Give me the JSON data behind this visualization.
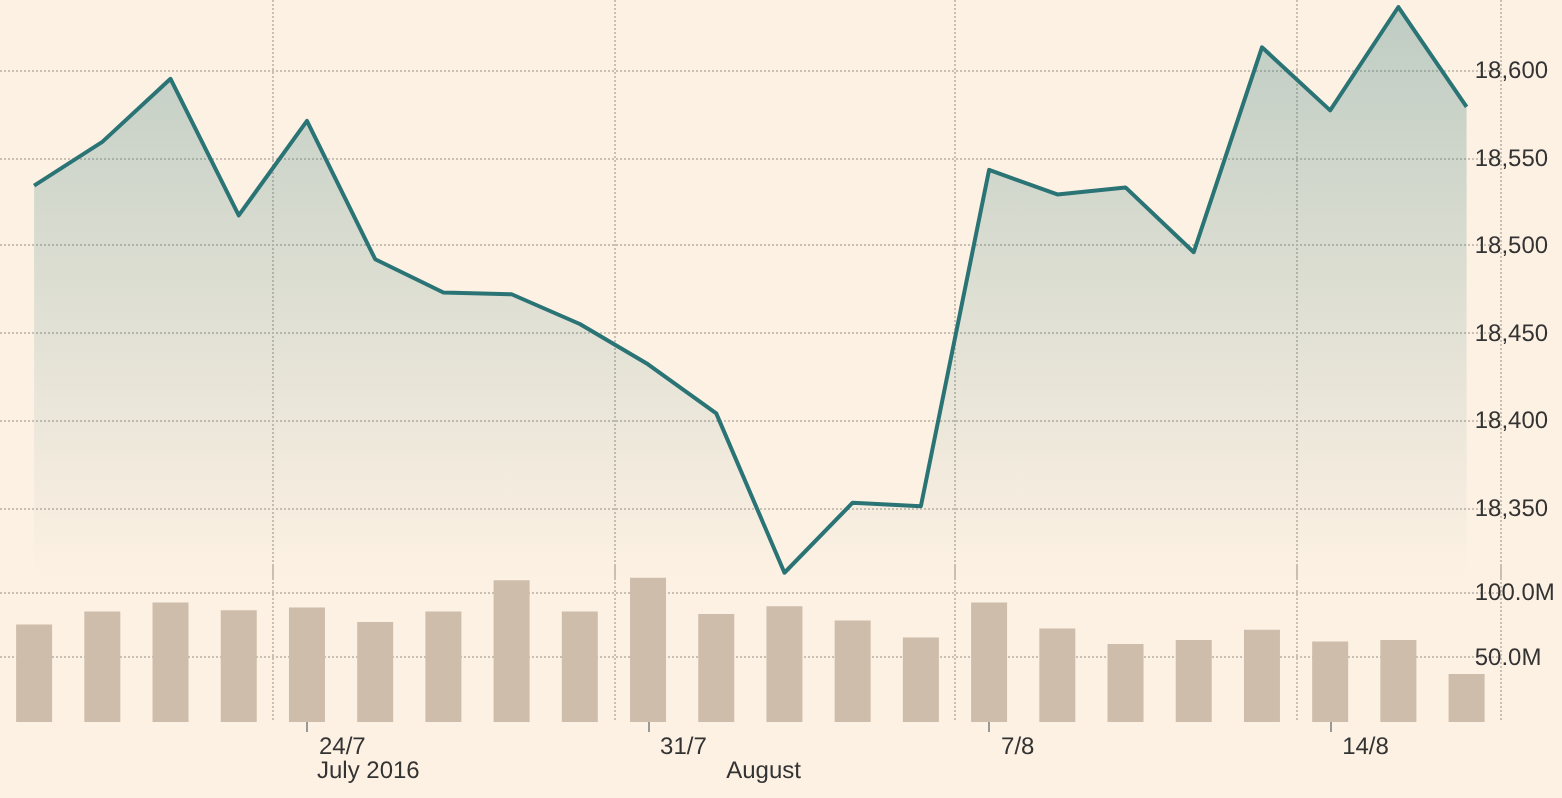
{
  "chart_data": [
    {
      "type": "area",
      "categories": [
        null,
        null,
        null,
        null,
        null,
        null,
        null,
        null,
        null,
        null,
        null,
        null,
        null,
        null,
        null,
        null,
        null,
        null,
        null,
        null,
        null,
        null
      ],
      "series": [
        {
          "color": "#2a7475",
          "values": [
            18534,
            18559,
            18595,
            18517,
            18571,
            18492,
            18473,
            18472,
            18455,
            18432,
            18404,
            18313,
            18353,
            18351,
            18543,
            18529,
            18533,
            18496,
            18613,
            18577,
            18636,
            18579
          ]
        }
      ],
      "ylim": [
        18310,
        18640
      ],
      "yticks": [
        {
          "value": 18350,
          "label": "18,350"
        },
        {
          "value": 18400,
          "label": "18,400"
        },
        {
          "value": 18450,
          "label": "18,450"
        },
        {
          "value": 18500,
          "label": "18,500"
        },
        {
          "value": 18550,
          "label": "18,550"
        },
        {
          "value": 18600,
          "label": "18,600"
        }
      ],
      "grid": true,
      "tick_labels": "y"
    },
    {
      "type": "bar",
      "categories": [
        null,
        null,
        null,
        null,
        "24/7",
        null,
        null,
        null,
        null,
        "31/7",
        null,
        null,
        null,
        null,
        "7/8",
        null,
        null,
        null,
        null,
        "14/8",
        null,
        null
      ],
      "series": [
        {
          "color": "#cebdab",
          "values": [
            75,
            85,
            92,
            86,
            88,
            77,
            85,
            109,
            85,
            111,
            83,
            89,
            78,
            65,
            92,
            72,
            60,
            63,
            71,
            62,
            63,
            37
          ]
        }
      ],
      "ylim": [
        0,
        120
      ],
      "yticks": [
        {
          "value": 50,
          "label": "50.0M"
        },
        {
          "value": 100,
          "label": "100.0M"
        }
      ],
      "grid": true,
      "annotations": [
        "July 2016",
        "August"
      ]
    }
  ]
}
